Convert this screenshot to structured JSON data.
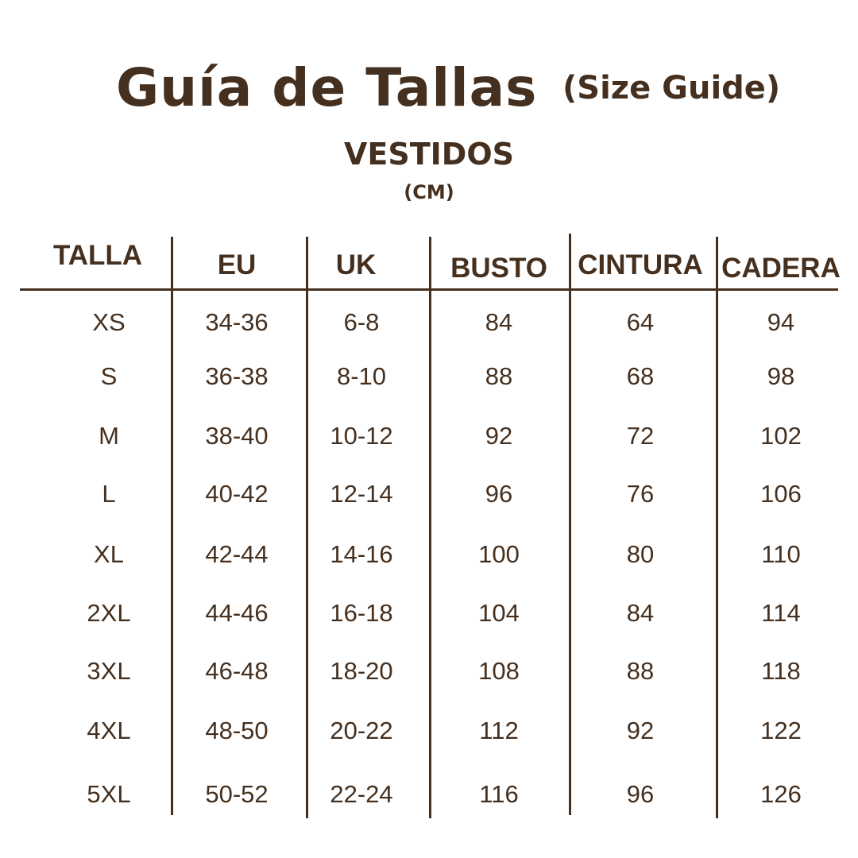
{
  "title": "Guía de Tallas",
  "subtitle": "(Size Guide)",
  "section": "VESTIDOS",
  "unit": "(CM)",
  "colors": {
    "text": "#45301f",
    "background": "#ffffff"
  },
  "table": {
    "headers": [
      "TALLA",
      "EU",
      "UK",
      "BUSTO",
      "CINTURA",
      "CADERA"
    ],
    "rows": [
      [
        "XS",
        "34-36",
        "6-8",
        "84",
        "64",
        "94"
      ],
      [
        "S",
        "36-38",
        "8-10",
        "88",
        "68",
        "98"
      ],
      [
        "M",
        "38-40",
        "10-12",
        "92",
        "72",
        "102"
      ],
      [
        "L",
        "40-42",
        "12-14",
        "96",
        "76",
        "106"
      ],
      [
        "XL",
        "42-44",
        "14-16",
        "100",
        "80",
        "110"
      ],
      [
        "2XL",
        "44-46",
        "16-18",
        "104",
        "84",
        "114"
      ],
      [
        "3XL",
        "46-48",
        "18-20",
        "108",
        "88",
        "118"
      ],
      [
        "4XL",
        "48-50",
        "20-22",
        "112",
        "92",
        "122"
      ],
      [
        "5XL",
        "50-52",
        "22-24",
        "116",
        "96",
        "126"
      ]
    ]
  }
}
